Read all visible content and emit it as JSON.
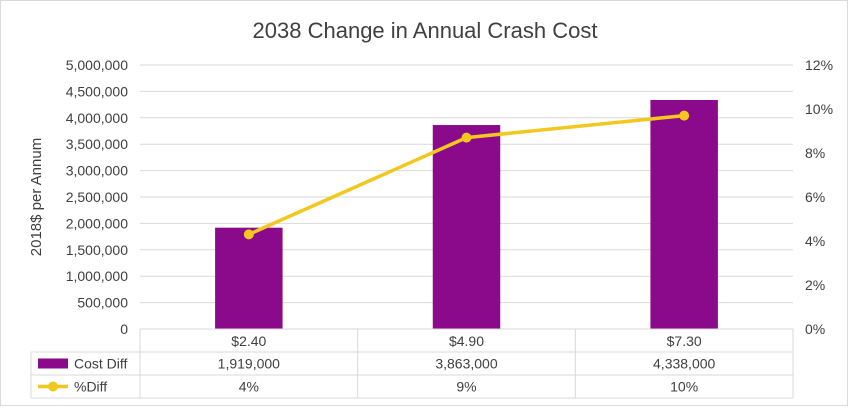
{
  "chart_data": {
    "type": "bar",
    "title": "2038 Change in Annual Crash Cost",
    "ylabel": "2018$ per Annum",
    "ylim": [
      0,
      5000000
    ],
    "y2lim": [
      0,
      12
    ],
    "y_ticks": [
      "0",
      "500,000",
      "1,000,000",
      "1,500,000",
      "2,000,000",
      "2,500,000",
      "3,000,000",
      "3,500,000",
      "4,000,000",
      "4,500,000",
      "5,000,000"
    ],
    "y2_ticks": [
      "0%",
      "2%",
      "4%",
      "6%",
      "8%",
      "10%",
      "12%"
    ],
    "categories": [
      "$2.40",
      "$4.90",
      "$7.30"
    ],
    "series": [
      {
        "name": "Cost Diff",
        "type": "bar",
        "axis": "left",
        "color": "#8b0a8b",
        "values": [
          1919000,
          3863000,
          4338000
        ],
        "labels": [
          "1,919,000",
          "3,863,000",
          "4,338,000"
        ]
      },
      {
        "name": "%Diff",
        "type": "line",
        "axis": "right",
        "color": "#f2c81e",
        "values": [
          4.3,
          8.7,
          9.7
        ],
        "labels": [
          "4%",
          "9%",
          "10%"
        ]
      }
    ],
    "grid": true,
    "legend": "data-table"
  }
}
